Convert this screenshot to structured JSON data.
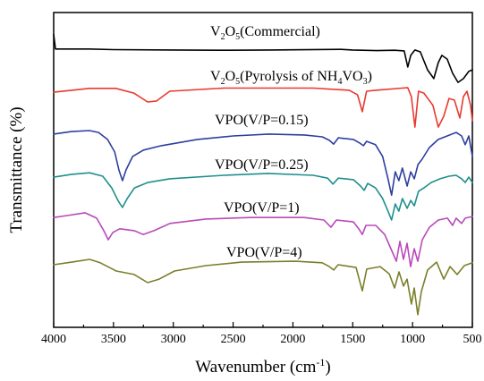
{
  "chart_data": {
    "type": "line",
    "xlabel": [
      {
        "text": "Wavenumber (cm"
      },
      {
        "text": "-1",
        "style": "sup"
      },
      {
        "text": ")"
      }
    ],
    "ylabel": "Transmittance (%)",
    "xlim": [
      4000,
      500
    ],
    "ylim": [
      0,
      100
    ],
    "x_ticks": [
      4000,
      3500,
      3000,
      2500,
      2000,
      1500,
      1000,
      500
    ],
    "grid": false,
    "series": [
      {
        "name": [
          {
            "text": "V"
          },
          {
            "text": "2",
            "style": "sub"
          },
          {
            "text": "O"
          },
          {
            "text": "5",
            "style": "sub"
          },
          {
            "text": "(Commercial)"
          }
        ],
        "color": "#000000",
        "points": [
          [
            4000,
            93.0
          ],
          [
            3985,
            88.4
          ],
          [
            3700,
            88.4
          ],
          [
            3500,
            88.2
          ],
          [
            3000,
            88.1
          ],
          [
            2600,
            88.0
          ],
          [
            2200,
            88.1
          ],
          [
            1600,
            88.3
          ],
          [
            1500,
            88.1
          ],
          [
            1300,
            87.9
          ],
          [
            1150,
            88.0
          ],
          [
            1070,
            87.8
          ],
          [
            1040,
            82.7
          ],
          [
            1015,
            86.4
          ],
          [
            980,
            88.1
          ],
          [
            935,
            87.5
          ],
          [
            875,
            81.8
          ],
          [
            822,
            79.0
          ],
          [
            785,
            84.1
          ],
          [
            755,
            86.4
          ],
          [
            710,
            85.2
          ],
          [
            665,
            80.7
          ],
          [
            620,
            77.8
          ],
          [
            575,
            79.0
          ],
          [
            530,
            81.3
          ],
          [
            500,
            81.8
          ]
        ]
      },
      {
        "name": [
          {
            "text": "V"
          },
          {
            "text": "2",
            "style": "sub"
          },
          {
            "text": "O"
          },
          {
            "text": "5",
            "style": "sub"
          },
          {
            "text": "(Pyrolysis of NH"
          },
          {
            "text": "4",
            "style": "sub"
          },
          {
            "text": "VO"
          },
          {
            "text": "3",
            "style": "sub"
          },
          {
            "text": ")"
          }
        ],
        "color": "#e8392f",
        "points": [
          [
            4000,
            74.7
          ],
          [
            3850,
            75.3
          ],
          [
            3700,
            75.9
          ],
          [
            3480,
            75.9
          ],
          [
            3330,
            74.4
          ],
          [
            3215,
            71.6
          ],
          [
            3140,
            71.9
          ],
          [
            3030,
            75.0
          ],
          [
            2580,
            76.0
          ],
          [
            2200,
            76.0
          ],
          [
            1830,
            76.0
          ],
          [
            1530,
            75.3
          ],
          [
            1460,
            73.9
          ],
          [
            1420,
            68.5
          ],
          [
            1385,
            75.0
          ],
          [
            1310,
            75.3
          ],
          [
            1085,
            76.0
          ],
          [
            1040,
            76.1
          ],
          [
            1010,
            73.3
          ],
          [
            980,
            63.6
          ],
          [
            950,
            75.0
          ],
          [
            905,
            74.4
          ],
          [
            830,
            70.5
          ],
          [
            785,
            63.6
          ],
          [
            740,
            67.0
          ],
          [
            695,
            72.7
          ],
          [
            650,
            72.2
          ],
          [
            605,
            66.5
          ],
          [
            575,
            73.3
          ],
          [
            545,
            75.0
          ],
          [
            515,
            70.5
          ],
          [
            500,
            65.6
          ]
        ]
      },
      {
        "name": [
          {
            "text": "VPO(V/P=0.15)"
          }
        ],
        "color": "#2e3f9e",
        "points": [
          [
            4000,
            61.4
          ],
          [
            3850,
            62.2
          ],
          [
            3700,
            62.5
          ],
          [
            3625,
            61.9
          ],
          [
            3550,
            59.7
          ],
          [
            3490,
            55.7
          ],
          [
            3455,
            50.0
          ],
          [
            3425,
            46.6
          ],
          [
            3395,
            50.0
          ],
          [
            3340,
            54.3
          ],
          [
            3250,
            56.3
          ],
          [
            3100,
            57.7
          ],
          [
            2800,
            59.7
          ],
          [
            2500,
            60.8
          ],
          [
            2200,
            61.4
          ],
          [
            1905,
            61.1
          ],
          [
            1755,
            60.5
          ],
          [
            1695,
            59.4
          ],
          [
            1660,
            58.2
          ],
          [
            1620,
            60.2
          ],
          [
            1495,
            59.7
          ],
          [
            1440,
            58.5
          ],
          [
            1410,
            57.7
          ],
          [
            1385,
            59.1
          ],
          [
            1310,
            58.0
          ],
          [
            1250,
            54.3
          ],
          [
            1205,
            47.2
          ],
          [
            1175,
            42.0
          ],
          [
            1145,
            49.4
          ],
          [
            1115,
            46.6
          ],
          [
            1085,
            50.6
          ],
          [
            1045,
            44.9
          ],
          [
            1015,
            49.4
          ],
          [
            985,
            47.2
          ],
          [
            955,
            51.7
          ],
          [
            920,
            53.4
          ],
          [
            860,
            57.1
          ],
          [
            785,
            59.7
          ],
          [
            710,
            60.8
          ],
          [
            635,
            61.9
          ],
          [
            590,
            60.8
          ],
          [
            560,
            58.0
          ],
          [
            530,
            60.8
          ],
          [
            500,
            54.3
          ]
        ]
      },
      {
        "name": [
          {
            "text": "VPO(V/P=0.25)"
          }
        ],
        "color": "#1f8f8c",
        "points": [
          [
            4000,
            47.7
          ],
          [
            3850,
            48.6
          ],
          [
            3700,
            49.1
          ],
          [
            3590,
            48.0
          ],
          [
            3515,
            44.3
          ],
          [
            3460,
            40.1
          ],
          [
            3425,
            38.1
          ],
          [
            3385,
            40.9
          ],
          [
            3325,
            44.3
          ],
          [
            3215,
            46.0
          ],
          [
            3030,
            47.2
          ],
          [
            2580,
            48.3
          ],
          [
            2205,
            48.9
          ],
          [
            1830,
            48.3
          ],
          [
            1710,
            47.4
          ],
          [
            1665,
            45.5
          ],
          [
            1620,
            47.4
          ],
          [
            1495,
            46.9
          ],
          [
            1435,
            44.9
          ],
          [
            1405,
            43.5
          ],
          [
            1375,
            45.7
          ],
          [
            1310,
            44.3
          ],
          [
            1250,
            40.9
          ],
          [
            1205,
            36.9
          ],
          [
            1175,
            34.1
          ],
          [
            1145,
            39.2
          ],
          [
            1115,
            36.9
          ],
          [
            1085,
            40.9
          ],
          [
            1045,
            37.8
          ],
          [
            1015,
            40.3
          ],
          [
            985,
            38.6
          ],
          [
            950,
            43.2
          ],
          [
            905,
            44.3
          ],
          [
            845,
            46.0
          ],
          [
            770,
            47.2
          ],
          [
            695,
            48.0
          ],
          [
            635,
            48.3
          ],
          [
            590,
            47.2
          ],
          [
            560,
            46.0
          ],
          [
            530,
            47.7
          ],
          [
            500,
            46.0
          ]
        ]
      },
      {
        "name": [
          {
            "text": "VPO(V/P=1)"
          }
        ],
        "color": "#b84ab8",
        "points": [
          [
            4000,
            34.9
          ],
          [
            3888,
            35.5
          ],
          [
            3738,
            36.4
          ],
          [
            3641,
            34.7
          ],
          [
            3581,
            30.7
          ],
          [
            3544,
            27.8
          ],
          [
            3506,
            30.1
          ],
          [
            3447,
            31.3
          ],
          [
            3327,
            30.7
          ],
          [
            3252,
            29.5
          ],
          [
            3162,
            30.7
          ],
          [
            3028,
            33.0
          ],
          [
            2729,
            34.4
          ],
          [
            2355,
            34.9
          ],
          [
            1906,
            34.9
          ],
          [
            1741,
            34.1
          ],
          [
            1682,
            31.8
          ],
          [
            1637,
            34.1
          ],
          [
            1495,
            33.5
          ],
          [
            1450,
            31.3
          ],
          [
            1420,
            29.5
          ],
          [
            1390,
            32.4
          ],
          [
            1308,
            32.4
          ],
          [
            1233,
            29.5
          ],
          [
            1181,
            25.0
          ],
          [
            1136,
            21.0
          ],
          [
            1106,
            27.3
          ],
          [
            1076,
            21.6
          ],
          [
            1046,
            26.7
          ],
          [
            1016,
            19.3
          ],
          [
            986,
            25.0
          ],
          [
            956,
            21.0
          ],
          [
            919,
            27.8
          ],
          [
            859,
            31.8
          ],
          [
            784,
            34.1
          ],
          [
            709,
            34.7
          ],
          [
            665,
            32.4
          ],
          [
            635,
            34.7
          ],
          [
            590,
            33.0
          ],
          [
            560,
            34.7
          ],
          [
            500,
            35.2
          ]
        ]
      },
      {
        "name": [
          {
            "text": "VPO(V/P=4)"
          }
        ],
        "color": "#7b7f2a",
        "points": [
          [
            4000,
            19.9
          ],
          [
            3850,
            20.7
          ],
          [
            3700,
            21.6
          ],
          [
            3611,
            20.5
          ],
          [
            3477,
            17.9
          ],
          [
            3327,
            16.8
          ],
          [
            3215,
            14.2
          ],
          [
            3118,
            15.3
          ],
          [
            2990,
            17.9
          ],
          [
            2729,
            19.6
          ],
          [
            2430,
            20.7
          ],
          [
            1981,
            21.0
          ],
          [
            1756,
            20.5
          ],
          [
            1696,
            19.3
          ],
          [
            1659,
            18.2
          ],
          [
            1622,
            19.9
          ],
          [
            1472,
            19.0
          ],
          [
            1420,
            11.6
          ],
          [
            1383,
            18.5
          ],
          [
            1270,
            19.3
          ],
          [
            1195,
            17.0
          ],
          [
            1151,
            12.5
          ],
          [
            1113,
            17.6
          ],
          [
            1076,
            13.1
          ],
          [
            1046,
            15.3
          ],
          [
            1009,
            7.4
          ],
          [
            986,
            12.5
          ],
          [
            956,
            4.0
          ],
          [
            926,
            11.4
          ],
          [
            874,
            18.2
          ],
          [
            799,
            20.7
          ],
          [
            739,
            15.3
          ],
          [
            687,
            19.3
          ],
          [
            627,
            16.8
          ],
          [
            567,
            19.6
          ],
          [
            500,
            20.5
          ]
        ]
      }
    ]
  }
}
